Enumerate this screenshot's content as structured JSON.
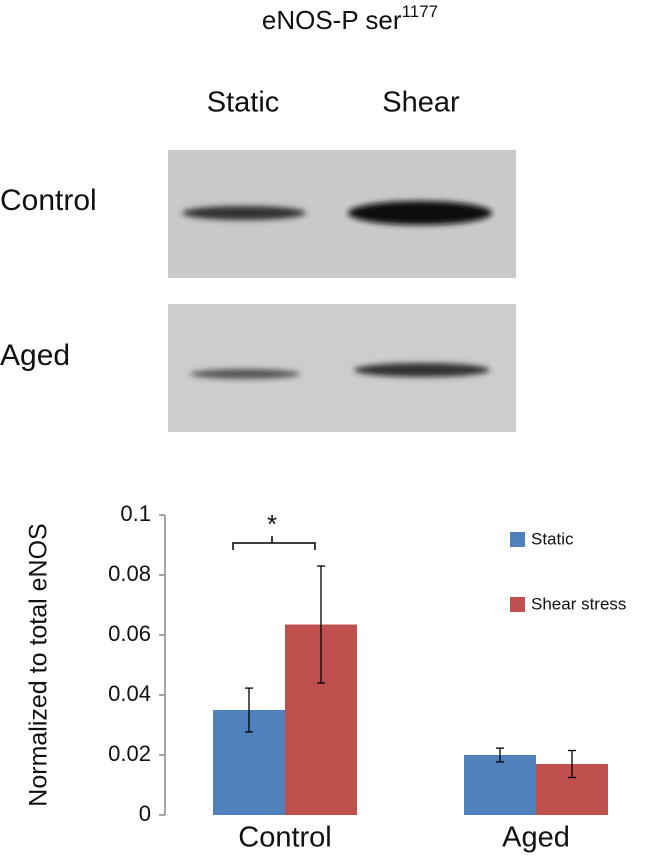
{
  "blot": {
    "title": "eNOS-P ser",
    "title_superscript": "1177",
    "columns": [
      "Static",
      "Shear"
    ],
    "rows": [
      "Control",
      "Aged"
    ]
  },
  "chart_data": {
    "type": "bar",
    "ylabel": "Normalized to total eNOS",
    "categories": [
      "Control",
      "Aged"
    ],
    "series": [
      {
        "name": "Static",
        "color": "#4f81bd",
        "values": [
          0.035,
          0.02
        ],
        "errors": [
          0.0073,
          0.0023
        ]
      },
      {
        "name": "Shear stress",
        "color": "#c0504d",
        "values": [
          0.0635,
          0.017
        ],
        "errors": [
          0.0195,
          0.0045
        ]
      }
    ],
    "ylim": [
      0,
      0.1
    ],
    "yticks": [
      0,
      0.02,
      0.04,
      0.06,
      0.08,
      0.1
    ],
    "annotation": "*",
    "legend": "right"
  }
}
